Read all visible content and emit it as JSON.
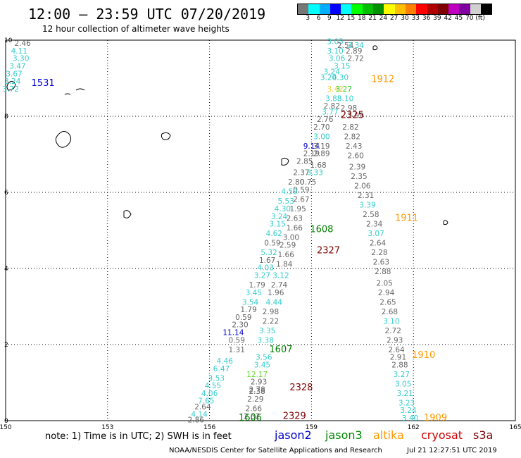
{
  "header": {
    "title": "12:00 – 23:59 UTC 07/20/2019",
    "subtitle": "12 hour collection of altimeter wave heights"
  },
  "colorbar": {
    "colors": [
      "#777777",
      "#00ffff",
      "#00b0ff",
      "#0000ff",
      "#00ffff",
      "#00ff00",
      "#00c000",
      "#009000",
      "#ffff00",
      "#ffc000",
      "#ff8000",
      "#ff0000",
      "#b00000",
      "#800000",
      "#c000c0",
      "#8000a0",
      "#d0d0d0",
      "#000000"
    ],
    "labels": [
      "3",
      "6",
      "9",
      "12",
      "15",
      "18",
      "21",
      "24",
      "27",
      "30",
      "33",
      "36",
      "39",
      "42",
      "45",
      "70",
      "(ft)"
    ]
  },
  "map": {
    "lon_ticks": [
      "150",
      "153",
      "156",
      "159",
      "162",
      "165"
    ],
    "lat_ticks": [
      "0",
      "2",
      "4",
      "6",
      "8",
      "10"
    ],
    "lon_range": [
      150,
      165
    ],
    "lat_range": [
      0,
      10
    ],
    "grid": "dotted"
  },
  "pass_labels": [
    {
      "text": "1531",
      "lon": 151.1,
      "lat": 8.8,
      "color": "#0000cc"
    },
    {
      "text": "1912",
      "lon": 161.1,
      "lat": 8.9,
      "color": "#ff9900"
    },
    {
      "text": "2325",
      "lon": 160.2,
      "lat": 7.95,
      "color": "#800000"
    },
    {
      "text": "1911",
      "lon": 161.8,
      "lat": 5.25,
      "color": "#ff9900"
    },
    {
      "text": "1608",
      "lon": 159.3,
      "lat": 4.95,
      "color": "#008000"
    },
    {
      "text": "2327",
      "lon": 159.5,
      "lat": 4.4,
      "color": "#800000"
    },
    {
      "text": "1607",
      "lon": 158.1,
      "lat": 1.8,
      "color": "#008000"
    },
    {
      "text": "1910",
      "lon": 162.3,
      "lat": 1.65,
      "color": "#ff9900"
    },
    {
      "text": "2328",
      "lon": 158.7,
      "lat": 0.8,
      "color": "#800000"
    },
    {
      "text": "1606",
      "lon": 157.2,
      "lat": 0.0,
      "color": "#008000"
    },
    {
      "text": "2329",
      "lon": 158.5,
      "lat": 0.05,
      "color": "#800000"
    },
    {
      "text": "1909",
      "lon": 162.65,
      "lat": 0.0,
      "color": "#ff9900"
    }
  ],
  "wave_values": [
    {
      "text": "2.46",
      "lon": 150.5,
      "lat": 9.85,
      "color": "#666666"
    },
    {
      "text": "4.11",
      "lon": 150.4,
      "lat": 9.65,
      "color": "#33cccc"
    },
    {
      "text": "3.30",
      "lon": 150.45,
      "lat": 9.45,
      "color": "#33cccc"
    },
    {
      "text": "3.47",
      "lon": 150.35,
      "lat": 9.25,
      "color": "#33cccc"
    },
    {
      "text": "3.67",
      "lon": 150.25,
      "lat": 9.05,
      "color": "#33cccc"
    },
    {
      "text": "3.24",
      "lon": 150.2,
      "lat": 8.85,
      "color": "#33cccc"
    },
    {
      "text": "3.72",
      "lon": 150.15,
      "lat": 8.65,
      "color": "#33cccc"
    },
    {
      "text": "3.05",
      "lon": 159.7,
      "lat": 9.9,
      "color": "#33cccc"
    },
    {
      "text": "2.54",
      "lon": 160.0,
      "lat": 9.8,
      "color": "#666666"
    },
    {
      "text": "3.34",
      "lon": 160.3,
      "lat": 9.8,
      "color": "#33cccc"
    },
    {
      "text": "3.10",
      "lon": 159.7,
      "lat": 9.65,
      "color": "#33cccc"
    },
    {
      "text": "2.89",
      "lon": 160.25,
      "lat": 9.65,
      "color": "#666666"
    },
    {
      "text": "3.06",
      "lon": 159.75,
      "lat": 9.45,
      "color": "#33cccc"
    },
    {
      "text": "2.72",
      "lon": 160.3,
      "lat": 9.45,
      "color": "#666666"
    },
    {
      "text": "3.15",
      "lon": 159.9,
      "lat": 9.25,
      "color": "#33cccc"
    },
    {
      "text": "3.24",
      "lon": 159.6,
      "lat": 9.1,
      "color": "#33cccc"
    },
    {
      "text": "4.30",
      "lon": 159.85,
      "lat": 8.95,
      "color": "#33cccc"
    },
    {
      "text": "3.20",
      "lon": 159.5,
      "lat": 8.95,
      "color": "#33cccc"
    },
    {
      "text": "3.42",
      "lon": 159.7,
      "lat": 8.65,
      "color": "#ffcc33"
    },
    {
      "text": "3.27",
      "lon": 159.95,
      "lat": 8.65,
      "color": "#33cc33"
    },
    {
      "text": "3.88",
      "lon": 159.65,
      "lat": 8.4,
      "color": "#33cccc"
    },
    {
      "text": "3.10",
      "lon": 160.0,
      "lat": 8.4,
      "color": "#33cccc"
    },
    {
      "text": "2.82",
      "lon": 159.6,
      "lat": 8.2,
      "color": "#666666"
    },
    {
      "text": "3.77",
      "lon": 159.55,
      "lat": 8.05,
      "color": "#33cccc"
    },
    {
      "text": "2.98",
      "lon": 160.1,
      "lat": 8.15,
      "color": "#666666"
    },
    {
      "text": "2.76",
      "lon": 159.4,
      "lat": 7.85,
      "color": "#666666"
    },
    {
      "text": "2.99",
      "lon": 160.3,
      "lat": 7.95,
      "color": "#666666"
    },
    {
      "text": "2.70",
      "lon": 159.3,
      "lat": 7.65,
      "color": "#666666"
    },
    {
      "text": "2.82",
      "lon": 160.15,
      "lat": 7.65,
      "color": "#666666"
    },
    {
      "text": "3.00",
      "lon": 159.3,
      "lat": 7.4,
      "color": "#33cccc"
    },
    {
      "text": "2.82",
      "lon": 160.2,
      "lat": 7.4,
      "color": "#666666"
    },
    {
      "text": "9.14",
      "lon": 159.0,
      "lat": 7.15,
      "color": "#0000cc"
    },
    {
      "text": "3.19",
      "lon": 159.3,
      "lat": 7.15,
      "color": "#666666"
    },
    {
      "text": "2.43",
      "lon": 160.25,
      "lat": 7.15,
      "color": "#666666"
    },
    {
      "text": "2.19",
      "lon": 159.0,
      "lat": 6.95,
      "color": "#666666"
    },
    {
      "text": "2.89",
      "lon": 159.3,
      "lat": 6.95,
      "color": "#666666"
    },
    {
      "text": "2.60",
      "lon": 160.3,
      "lat": 6.9,
      "color": "#666666"
    },
    {
      "text": "2.85",
      "lon": 158.8,
      "lat": 6.75,
      "color": "#666666"
    },
    {
      "text": "1.68",
      "lon": 159.2,
      "lat": 6.65,
      "color": "#666666"
    },
    {
      "text": "2.39",
      "lon": 160.35,
      "lat": 6.6,
      "color": "#666666"
    },
    {
      "text": "2.37",
      "lon": 158.7,
      "lat": 6.45,
      "color": "#666666"
    },
    {
      "text": "3.33",
      "lon": 159.1,
      "lat": 6.45,
      "color": "#33cccc"
    },
    {
      "text": "2.35",
      "lon": 160.4,
      "lat": 6.35,
      "color": "#666666"
    },
    {
      "text": "2.80",
      "lon": 158.55,
      "lat": 6.2,
      "color": "#666666"
    },
    {
      "text": "0.75",
      "lon": 158.9,
      "lat": 6.2,
      "color": "#666666"
    },
    {
      "text": "2.06",
      "lon": 160.5,
      "lat": 6.1,
      "color": "#666666"
    },
    {
      "text": "0.59",
      "lon": 158.7,
      "lat": 6.0,
      "color": "#666666"
    },
    {
      "text": "4.50",
      "lon": 158.35,
      "lat": 5.95,
      "color": "#33cccc"
    },
    {
      "text": "2.31",
      "lon": 160.6,
      "lat": 5.85,
      "color": "#666666"
    },
    {
      "text": "5.53",
      "lon": 158.25,
      "lat": 5.7,
      "color": "#33cccc"
    },
    {
      "text": "2.67",
      "lon": 158.7,
      "lat": 5.75,
      "color": "#666666"
    },
    {
      "text": "3.39",
      "lon": 160.65,
      "lat": 5.6,
      "color": "#33cccc"
    },
    {
      "text": "4.30",
      "lon": 158.15,
      "lat": 5.5,
      "color": "#33cccc"
    },
    {
      "text": "1.95",
      "lon": 158.6,
      "lat": 5.5,
      "color": "#666666"
    },
    {
      "text": "2.58",
      "lon": 160.75,
      "lat": 5.35,
      "color": "#666666"
    },
    {
      "text": "3.24",
      "lon": 158.05,
      "lat": 5.3,
      "color": "#33cccc"
    },
    {
      "text": "2.63",
      "lon": 158.5,
      "lat": 5.25,
      "color": "#666666"
    },
    {
      "text": "2.34",
      "lon": 160.85,
      "lat": 5.1,
      "color": "#666666"
    },
    {
      "text": "3.15",
      "lon": 158.0,
      "lat": 5.1,
      "color": "#33cccc"
    },
    {
      "text": "1.66",
      "lon": 158.5,
      "lat": 5.0,
      "color": "#666666"
    },
    {
      "text": "3.07",
      "lon": 160.9,
      "lat": 4.85,
      "color": "#33cccc"
    },
    {
      "text": "4.62",
      "lon": 157.9,
      "lat": 4.85,
      "color": "#33cccc"
    },
    {
      "text": "3.00",
      "lon": 158.4,
      "lat": 4.75,
      "color": "#666666"
    },
    {
      "text": "2.64",
      "lon": 160.95,
      "lat": 4.6,
      "color": "#666666"
    },
    {
      "text": "0.59",
      "lon": 157.85,
      "lat": 4.6,
      "color": "#666666"
    },
    {
      "text": "2.59",
      "lon": 158.3,
      "lat": 4.55,
      "color": "#666666"
    },
    {
      "text": "2.28",
      "lon": 161.0,
      "lat": 4.35,
      "color": "#666666"
    },
    {
      "text": "5.32",
      "lon": 157.75,
      "lat": 4.35,
      "color": "#33cccc"
    },
    {
      "text": "1.66",
      "lon": 158.25,
      "lat": 4.3,
      "color": "#666666"
    },
    {
      "text": "1.67",
      "lon": 157.7,
      "lat": 4.15,
      "color": "#666666"
    },
    {
      "text": "2.63",
      "lon": 161.05,
      "lat": 4.1,
      "color": "#666666"
    },
    {
      "text": "4.03",
      "lon": 157.65,
      "lat": 3.95,
      "color": "#33cccc"
    },
    {
      "text": "1.84",
      "lon": 158.2,
      "lat": 4.05,
      "color": "#666666"
    },
    {
      "text": "2.88",
      "lon": 161.1,
      "lat": 3.85,
      "color": "#666666"
    },
    {
      "text": "3.27",
      "lon": 157.55,
      "lat": 3.75,
      "color": "#33cccc"
    },
    {
      "text": "3.12",
      "lon": 158.1,
      "lat": 3.75,
      "color": "#33cccc"
    },
    {
      "text": "2.05",
      "lon": 161.15,
      "lat": 3.55,
      "color": "#666666"
    },
    {
      "text": "1.79",
      "lon": 157.4,
      "lat": 3.5,
      "color": "#666666"
    },
    {
      "text": "2.74",
      "lon": 158.05,
      "lat": 3.5,
      "color": "#666666"
    },
    {
      "text": "2.94",
      "lon": 161.2,
      "lat": 3.3,
      "color": "#666666"
    },
    {
      "text": "3.45",
      "lon": 157.3,
      "lat": 3.3,
      "color": "#33cccc"
    },
    {
      "text": "1.96",
      "lon": 157.95,
      "lat": 3.3,
      "color": "#666666"
    },
    {
      "text": "2.65",
      "lon": 161.25,
      "lat": 3.05,
      "color": "#666666"
    },
    {
      "text": "3.54",
      "lon": 157.2,
      "lat": 3.05,
      "color": "#33cccc"
    },
    {
      "text": "4.44",
      "lon": 157.9,
      "lat": 3.05,
      "color": "#33cccc"
    },
    {
      "text": "1.79",
      "lon": 157.15,
      "lat": 2.85,
      "color": "#666666"
    },
    {
      "text": "2.98",
      "lon": 157.8,
      "lat": 2.8,
      "color": "#666666"
    },
    {
      "text": "2.68",
      "lon": 161.3,
      "lat": 2.8,
      "color": "#666666"
    },
    {
      "text": "0.59",
      "lon": 157.0,
      "lat": 2.65,
      "color": "#666666"
    },
    {
      "text": "2.22",
      "lon": 157.8,
      "lat": 2.55,
      "color": "#666666"
    },
    {
      "text": "3.10",
      "lon": 161.35,
      "lat": 2.55,
      "color": "#33cccc"
    },
    {
      "text": "2.30",
      "lon": 156.9,
      "lat": 2.45,
      "color": "#666666"
    },
    {
      "text": "3.35",
      "lon": 157.7,
      "lat": 2.3,
      "color": "#33cccc"
    },
    {
      "text": "2.72",
      "lon": 161.4,
      "lat": 2.3,
      "color": "#666666"
    },
    {
      "text": "11.14",
      "lon": 156.7,
      "lat": 2.25,
      "color": "#0000cc"
    },
    {
      "text": "3.38",
      "lon": 157.65,
      "lat": 2.05,
      "color": "#33cccc"
    },
    {
      "text": "2.93",
      "lon": 161.45,
      "lat": 2.05,
      "color": "#666666"
    },
    {
      "text": "0.59",
      "lon": 156.8,
      "lat": 2.05,
      "color": "#666666"
    },
    {
      "text": "1.31",
      "lon": 156.8,
      "lat": 1.8,
      "color": "#666666"
    },
    {
      "text": "2.64",
      "lon": 161.5,
      "lat": 1.8,
      "color": "#666666"
    },
    {
      "text": "3.56",
      "lon": 157.6,
      "lat": 1.6,
      "color": "#33cccc"
    },
    {
      "text": "2.91",
      "lon": 161.55,
      "lat": 1.6,
      "color": "#666666"
    },
    {
      "text": "4.46",
      "lon": 156.45,
      "lat": 1.5,
      "color": "#33cccc"
    },
    {
      "text": "3.45",
      "lon": 157.55,
      "lat": 1.4,
      "color": "#33cccc"
    },
    {
      "text": "2.88",
      "lon": 161.6,
      "lat": 1.4,
      "color": "#666666"
    },
    {
      "text": "6.47",
      "lon": 156.35,
      "lat": 1.3,
      "color": "#33cccc"
    },
    {
      "text": "12.17",
      "lon": 157.4,
      "lat": 1.15,
      "color": "#66dd33"
    },
    {
      "text": "3.27",
      "lon": 161.65,
      "lat": 1.15,
      "color": "#33cccc"
    },
    {
      "text": "3.53",
      "lon": 156.2,
      "lat": 1.05,
      "color": "#33cccc"
    },
    {
      "text": "2.93",
      "lon": 157.45,
      "lat": 0.95,
      "color": "#666666"
    },
    {
      "text": "3.05",
      "lon": 161.7,
      "lat": 0.9,
      "color": "#33cccc"
    },
    {
      "text": "4.55",
      "lon": 156.1,
      "lat": 0.85,
      "color": "#33cccc"
    },
    {
      "text": "2.78",
      "lon": 157.4,
      "lat": 0.75,
      "color": "#666666"
    },
    {
      "text": "2.38",
      "lon": 157.4,
      "lat": 0.7,
      "color": "#666666"
    },
    {
      "text": "3.21",
      "lon": 161.75,
      "lat": 0.65,
      "color": "#33cccc"
    },
    {
      "text": "4.06",
      "lon": 156.0,
      "lat": 0.65,
      "color": "#33cccc"
    },
    {
      "text": "2.29",
      "lon": 157.35,
      "lat": 0.5,
      "color": "#666666"
    },
    {
      "text": "7.65",
      "lon": 155.9,
      "lat": 0.45,
      "color": "#33cccc"
    },
    {
      "text": "3.23",
      "lon": 161.8,
      "lat": 0.4,
      "color": "#33cccc"
    },
    {
      "text": "2.64",
      "lon": 155.8,
      "lat": 0.3,
      "color": "#666666"
    },
    {
      "text": "2.66",
      "lon": 157.3,
      "lat": 0.25,
      "color": "#666666"
    },
    {
      "text": "3.24",
      "lon": 161.85,
      "lat": 0.2,
      "color": "#33cccc"
    },
    {
      "text": "4.14",
      "lon": 155.7,
      "lat": 0.1,
      "color": "#33cccc"
    },
    {
      "text": "2.32",
      "lon": 157.25,
      "lat": 0.05,
      "color": "#666666"
    },
    {
      "text": "2.86",
      "lon": 155.6,
      "lat": -0.05,
      "color": "#666666"
    },
    {
      "text": "3.40",
      "lon": 161.9,
      "lat": 0.0,
      "color": "#33cccc"
    }
  ],
  "footer": {
    "note": "note:  1) Time is in UTC;  2) SWH is in feet",
    "legend": [
      {
        "text": "jason2",
        "color": "#0000cc"
      },
      {
        "text": "jason3",
        "color": "#008800"
      },
      {
        "text": "altika",
        "color": "#ff9900"
      },
      {
        "text": "cryosat",
        "color": "#cc0000"
      },
      {
        "text": "s3a",
        "color": "#800000"
      }
    ],
    "credit": "NOAA/NESDIS Center for Satellite Applications and Research",
    "timestamp": "Jul 21 12:27:51 UTC 2019"
  }
}
